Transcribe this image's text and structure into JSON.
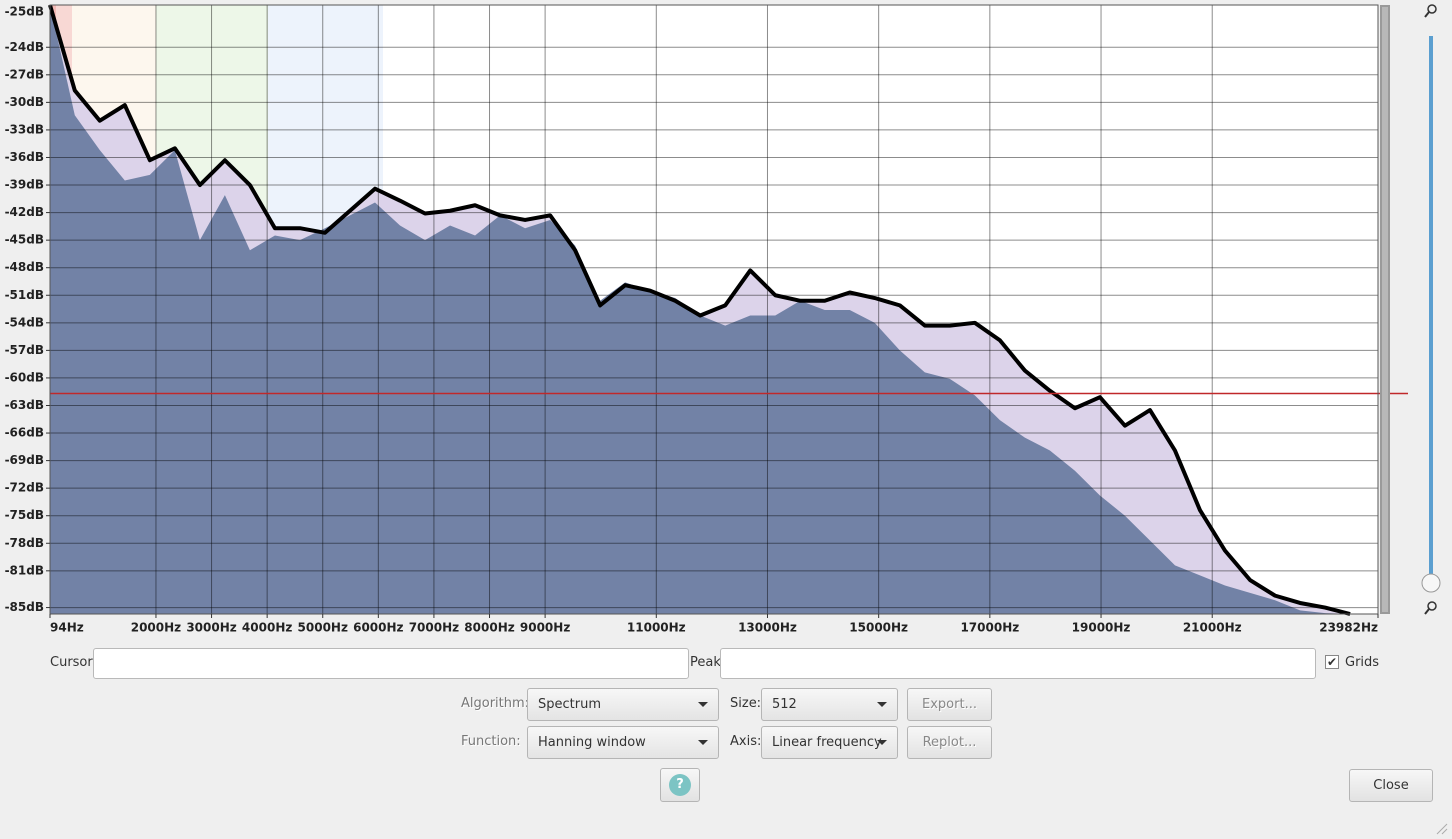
{
  "chart_data": {
    "type": "area",
    "y_top_label": "-25dB",
    "xlim": [
      94,
      23982
    ],
    "ylim": [
      -85.7,
      -19.4
    ],
    "xticks": [
      {
        "value": 94,
        "label": "94Hz"
      },
      {
        "value": 2000,
        "label": "2000Hz"
      },
      {
        "value": 3000,
        "label": "3000Hz"
      },
      {
        "value": 4000,
        "label": "4000Hz"
      },
      {
        "value": 5000,
        "label": "5000Hz"
      },
      {
        "value": 6000,
        "label": "6000Hz"
      },
      {
        "value": 7000,
        "label": "7000Hz"
      },
      {
        "value": 8000,
        "label": "8000Hz"
      },
      {
        "value": 9000,
        "label": "9000Hz"
      },
      {
        "value": 11000,
        "label": "11000Hz"
      },
      {
        "value": 13000,
        "label": "13000Hz"
      },
      {
        "value": 15000,
        "label": "15000Hz"
      },
      {
        "value": 17000,
        "label": "17000Hz"
      },
      {
        "value": 19000,
        "label": "19000Hz"
      },
      {
        "value": 21000,
        "label": "21000Hz"
      },
      {
        "value": 23982,
        "label": "23982Hz"
      }
    ],
    "yticks": [
      {
        "value": -24,
        "label": "-24dB"
      },
      {
        "value": -27,
        "label": "-27dB"
      },
      {
        "value": -30,
        "label": "-30dB"
      },
      {
        "value": -33,
        "label": "-33dB"
      },
      {
        "value": -36,
        "label": "-36dB"
      },
      {
        "value": -39,
        "label": "-39dB"
      },
      {
        "value": -42,
        "label": "-42dB"
      },
      {
        "value": -45,
        "label": "-45dB"
      },
      {
        "value": -48,
        "label": "-48dB"
      },
      {
        "value": -51,
        "label": "-51dB"
      },
      {
        "value": -54,
        "label": "-54dB"
      },
      {
        "value": -57,
        "label": "-57dB"
      },
      {
        "value": -60,
        "label": "-60dB"
      },
      {
        "value": -63,
        "label": "-63dB"
      },
      {
        "value": -66,
        "label": "-66dB"
      },
      {
        "value": -69,
        "label": "-69dB"
      },
      {
        "value": -72,
        "label": "-72dB"
      },
      {
        "value": -75,
        "label": "-75dB"
      },
      {
        "value": -78,
        "label": "-78dB"
      },
      {
        "value": -81,
        "label": "-81dB"
      },
      {
        "value": -85,
        "label": "-85dB"
      }
    ],
    "grid": true,
    "reference_line": -61.7,
    "reference_color": "#c0282a",
    "x": [
      94,
      540,
      990,
      1440,
      1890,
      2340,
      2790,
      3240,
      3690,
      4140,
      4590,
      5040,
      5490,
      5940,
      6390,
      6840,
      7290,
      7740,
      8190,
      8640,
      9090,
      9540,
      9990,
      10440,
      10890,
      11340,
      11790,
      12240,
      12690,
      13140,
      13590,
      14030,
      14480,
      14930,
      15380,
      15830,
      16280,
      16730,
      17180,
      17630,
      18080,
      18530,
      18980,
      19430,
      19880,
      20330,
      20780,
      21230,
      21680,
      22130,
      22580,
      23030,
      23480
    ],
    "series": [
      {
        "color": "#000000",
        "fill": "#dcd3ea",
        "values": [
          -19.4,
          -28.7,
          -32.0,
          -30.3,
          -36.3,
          -35.0,
          -39.0,
          -36.3,
          -39.0,
          -43.7,
          -43.7,
          -44.2,
          -41.8,
          -39.4,
          -40.7,
          -42.1,
          -41.8,
          -41.2,
          -42.3,
          -42.8,
          -42.3,
          -46.1,
          -52.1,
          -49.9,
          -50.5,
          -51.6,
          -53.2,
          -52.1,
          -48.3,
          -51.0,
          -51.6,
          -51.6,
          -50.7,
          -51.3,
          -52.1,
          -54.3,
          -54.3,
          -54.0,
          -55.9,
          -59.2,
          -61.4,
          -63.3,
          -62.1,
          -65.2,
          -63.5,
          -67.9,
          -74.4,
          -78.8,
          -82.0,
          -83.7,
          -84.5,
          -85.0,
          -85.7
        ]
      },
      {
        "color": "#7282a6",
        "values": [
          -19.4,
          -31.4,
          -35.2,
          -38.5,
          -37.9,
          -35.2,
          -45.0,
          -40.1,
          -46.1,
          -44.5,
          -45.0,
          -43.7,
          -42.3,
          -40.9,
          -43.4,
          -45.0,
          -43.4,
          -44.5,
          -42.3,
          -43.7,
          -42.8,
          -45.6,
          -51.6,
          -49.6,
          -50.5,
          -51.3,
          -53.2,
          -54.3,
          -53.2,
          -53.2,
          -51.6,
          -52.6,
          -52.6,
          -54.0,
          -57.0,
          -59.4,
          -60.1,
          -61.9,
          -64.6,
          -66.5,
          -67.9,
          -70.1,
          -72.8,
          -75.0,
          -77.7,
          -80.4,
          -81.5,
          -82.6,
          -83.4,
          -84.2,
          -85.3,
          -85.6,
          -85.7
        ]
      }
    ]
  },
  "controls": {
    "cursor_label": "Cursor:",
    "peak_label": "Peak:",
    "grids_label": "Grids",
    "algorithm_label": "Algorithm:",
    "algorithm": "Spectrum",
    "size_label": "Size:",
    "size": "512",
    "export": "Export...",
    "function_label": "Function:",
    "function": "Hanning window",
    "axis_label": "Axis:",
    "axis": "Linear frequency",
    "replot": "Replot...",
    "help": "?",
    "close": "Close"
  }
}
